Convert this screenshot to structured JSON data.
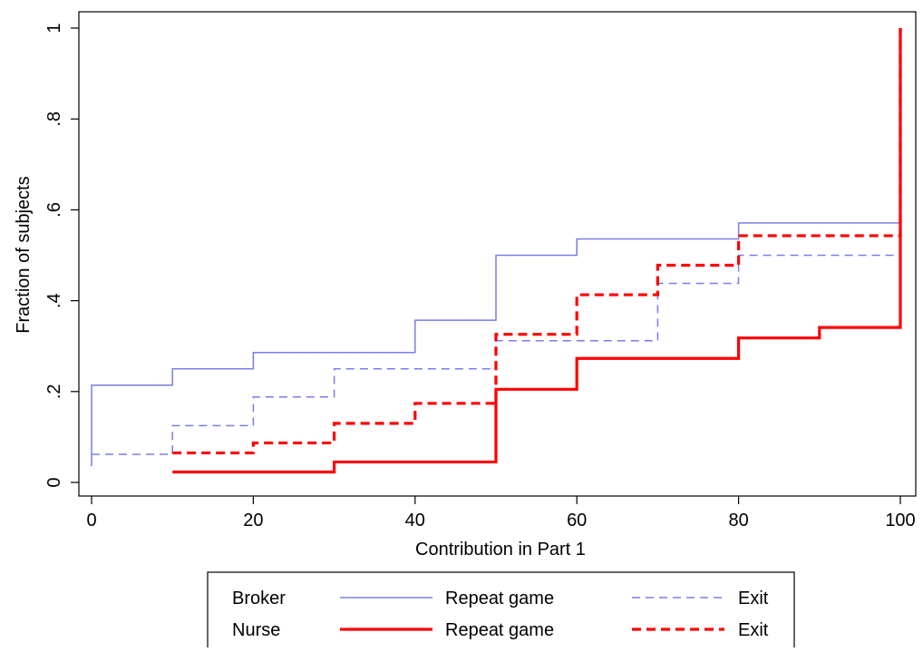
{
  "chart_data": {
    "type": "line",
    "step": true,
    "xlabel": "Contribution in Part 1",
    "ylabel": "Fraction of subjects",
    "xlim": [
      0,
      100
    ],
    "ylim": [
      0,
      1
    ],
    "x_ticks": [
      0,
      20,
      40,
      60,
      80,
      100
    ],
    "x_tick_labels": [
      "0",
      "20",
      "40",
      "60",
      "80",
      "100"
    ],
    "y_ticks": [
      0,
      0.2,
      0.4,
      0.6,
      0.8,
      1
    ],
    "y_tick_labels": [
      "0",
      ".2",
      ".4",
      ".6",
      ".8",
      "1"
    ],
    "grid": false,
    "legend_position": "bottom",
    "legend": {
      "groups": [
        "Broker",
        "Nurse"
      ],
      "conditions": [
        "Repeat game",
        "Exit"
      ]
    },
    "series": [
      {
        "group": "Broker",
        "condition": "Repeat game",
        "color": "#7b7be8",
        "line": "solid",
        "width": "thin",
        "x": [
          0,
          0,
          10,
          20,
          40,
          50,
          60,
          80,
          100,
          100
        ],
        "y": [
          0.036,
          0.214,
          0.25,
          0.286,
          0.357,
          0.5,
          0.536,
          0.571,
          0.571,
          1.0
        ]
      },
      {
        "group": "Broker",
        "condition": "Exit",
        "color": "#7b7be8",
        "line": "dashed",
        "width": "thin",
        "x": [
          0,
          10,
          20,
          30,
          50,
          70,
          80,
          100,
          100
        ],
        "y": [
          0.062,
          0.125,
          0.188,
          0.25,
          0.312,
          0.438,
          0.5,
          0.5,
          1.0
        ]
      },
      {
        "group": "Nurse",
        "condition": "Repeat game",
        "color": "#ff0000",
        "line": "solid",
        "width": "thick",
        "x": [
          10,
          30,
          50,
          60,
          80,
          90,
          100,
          100
        ],
        "y": [
          0.023,
          0.045,
          0.205,
          0.273,
          0.318,
          0.341,
          0.341,
          1.0
        ]
      },
      {
        "group": "Nurse",
        "condition": "Exit",
        "color": "#ff0000",
        "line": "dashed",
        "width": "thick",
        "x": [
          10,
          20,
          30,
          40,
          50,
          60,
          70,
          80,
          100,
          100
        ],
        "y": [
          0.065,
          0.087,
          0.13,
          0.174,
          0.326,
          0.413,
          0.478,
          0.543,
          0.543,
          1.0
        ]
      }
    ]
  }
}
